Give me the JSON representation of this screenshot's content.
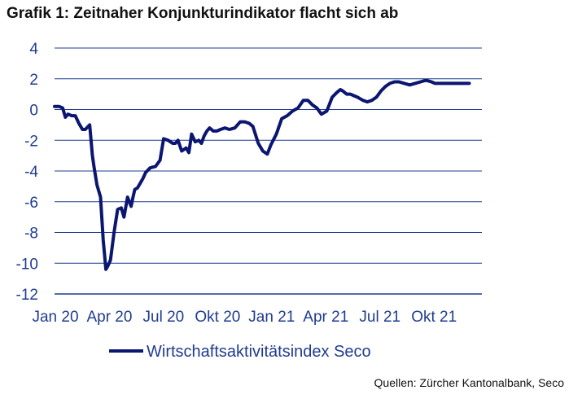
{
  "title": "Grafik 1: Zeitnaher Konjunkturindikator flacht sich ab",
  "source": "Quellen: Zürcher Kantonalbank, Seco",
  "colors": {
    "series": "#0b1670",
    "grid": "#1f3c8f",
    "text": "#1f3c8f"
  },
  "chart_data": {
    "type": "line",
    "title": "Grafik 1: Zeitnaher Konjunkturindikator flacht sich ab",
    "xlabel": "",
    "ylabel": "",
    "ylim": [
      -12,
      4
    ],
    "yticks": [
      4,
      2,
      0,
      -2,
      -4,
      -6,
      -8,
      -10,
      -12
    ],
    "xlim": [
      0,
      23.7
    ],
    "xticks": [
      {
        "pos": 0,
        "label": "Jan 20"
      },
      {
        "pos": 3,
        "label": "Apr 20"
      },
      {
        "pos": 6,
        "label": "Jul 20"
      },
      {
        "pos": 9,
        "label": "Okt 20"
      },
      {
        "pos": 12,
        "label": "Jan 21"
      },
      {
        "pos": 15,
        "label": "Apr 21"
      },
      {
        "pos": 18,
        "label": "Jul 21"
      },
      {
        "pos": 21,
        "label": "Okt 21"
      }
    ],
    "grid": true,
    "legend": "bottom",
    "series": [
      {
        "name": "Wirtschaftsaktivitätsindex Seco",
        "x": [
          0,
          0.25,
          0.45,
          0.6,
          0.75,
          0.95,
          1.15,
          1.35,
          1.55,
          1.7,
          1.95,
          2.1,
          2.2,
          2.35,
          2.55,
          2.7,
          2.85,
          2.95,
          3.1,
          3.3,
          3.5,
          3.7,
          3.85,
          4.05,
          4.25,
          4.35,
          4.45,
          4.6,
          4.75,
          4.9,
          5.05,
          5.3,
          5.6,
          5.85,
          6.05,
          6.3,
          6.55,
          6.7,
          6.85,
          7.05,
          7.3,
          7.45,
          7.6,
          7.8,
          8.0,
          8.15,
          8.3,
          8.45,
          8.6,
          8.8,
          9.0,
          9.2,
          9.45,
          9.7,
          10.0,
          10.3,
          10.55,
          10.8,
          11.0,
          11.3,
          11.55,
          11.8,
          12.0,
          12.3,
          12.6,
          12.9,
          13.2,
          13.5,
          13.8,
          14.05,
          14.3,
          14.55,
          14.8,
          15.1,
          15.4,
          15.65,
          15.85,
          16.0,
          16.2,
          16.4,
          16.6,
          16.8,
          17.1,
          17.35,
          17.6,
          17.85,
          18.1,
          18.35,
          18.6,
          18.85,
          19.1,
          19.4,
          19.7,
          20.0,
          20.3,
          20.6,
          20.9,
          21.1,
          21.35,
          21.6,
          21.85,
          22.1,
          22.35,
          22.6,
          22.85,
          23.0
        ],
        "values": [
          0.2,
          0.2,
          0.1,
          -0.5,
          -0.3,
          -0.4,
          -0.4,
          -0.9,
          -1.3,
          -1.3,
          -1.0,
          -3.0,
          -3.8,
          -4.9,
          -5.7,
          -8.5,
          -10.4,
          -10.2,
          -9.8,
          -8.0,
          -6.5,
          -6.4,
          -7.0,
          -5.7,
          -6.3,
          -5.7,
          -5.2,
          -5.1,
          -4.8,
          -4.5,
          -4.1,
          -3.8,
          -3.7,
          -3.3,
          -1.9,
          -2.0,
          -2.2,
          -2.2,
          -2.0,
          -2.7,
          -2.5,
          -2.8,
          -1.6,
          -2.1,
          -2.0,
          -2.2,
          -1.7,
          -1.4,
          -1.2,
          -1.4,
          -1.4,
          -1.3,
          -1.2,
          -1.3,
          -1.2,
          -0.8,
          -0.8,
          -0.9,
          -1.1,
          -2.2,
          -2.7,
          -2.9,
          -2.3,
          -1.6,
          -0.6,
          -0.4,
          -0.1,
          0.1,
          0.6,
          0.6,
          0.3,
          0.1,
          -0.3,
          -0.1,
          0.8,
          1.1,
          1.3,
          1.2,
          1.0,
          1.0,
          0.9,
          0.8,
          0.6,
          0.5,
          0.6,
          0.8,
          1.2,
          1.5,
          1.7,
          1.8,
          1.8,
          1.7,
          1.6,
          1.7,
          1.8,
          1.9,
          1.8,
          1.7,
          1.7,
          1.7,
          1.7,
          1.7,
          1.7,
          1.7,
          1.7,
          1.7
        ]
      }
    ]
  }
}
